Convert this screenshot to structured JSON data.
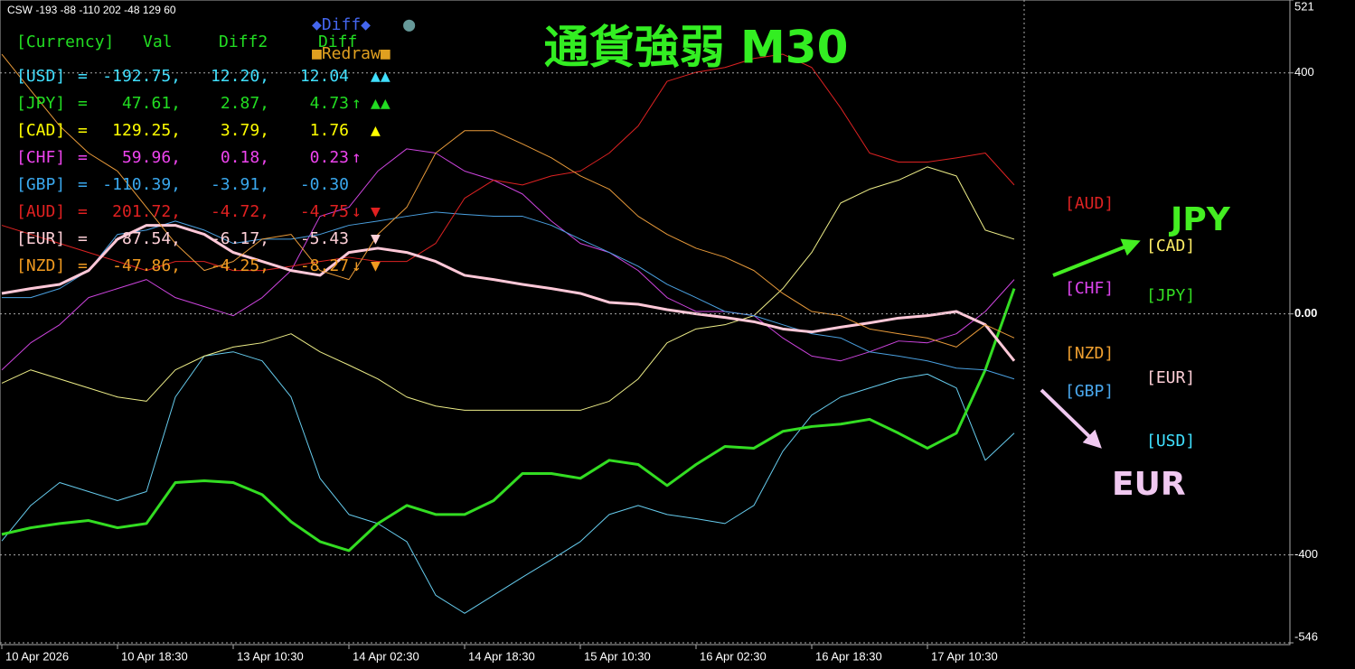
{
  "chart_data": {
    "type": "line",
    "title": "通貨強弱 M30",
    "subtitle": "CSW -193 -88 -110 202 -48 129 60",
    "categories": [
      "10 Apr 2026",
      null,
      null,
      null,
      "10 Apr 18:30",
      null,
      null,
      null,
      "13 Apr 10:30",
      null,
      null,
      null,
      "14 Apr 02:30",
      null,
      null,
      null,
      "14 Apr 18:30",
      null,
      null,
      null,
      "15 Apr 10:30",
      null,
      null,
      null,
      "16 Apr 02:30",
      null,
      null,
      null,
      "16 Apr 18:30",
      null,
      null,
      null,
      "17 Apr 10:30",
      null,
      null,
      null
    ],
    "ylim": [
      -546,
      521
    ],
    "yticks": [
      521,
      400,
      {
        "value": 0,
        "label": "0.00"
      },
      -400,
      -546
    ],
    "grid": true,
    "series": [
      {
        "name": "USD",
        "color": "#66ccee",
        "line_width": 1,
        "values": [
          -377,
          -318,
          -280,
          -295,
          -310,
          -295,
          -138,
          -70,
          -63,
          -78,
          -138,
          -273,
          -333,
          -348,
          -378,
          -467,
          -497,
          -467,
          -437,
          -408,
          -378,
          -333,
          -318,
          -333,
          -340,
          -348,
          -318,
          -228,
          -168,
          -138,
          -123,
          -108,
          -100,
          -123,
          -243,
          -198
        ]
      },
      {
        "name": "JPY",
        "color": "#33dd22",
        "line_width": 3,
        "values": [
          -366,
          -355,
          -348,
          -343,
          -355,
          -348,
          -280,
          -277,
          -280,
          -300,
          -345,
          -378,
          -393,
          -348,
          -318,
          -333,
          -333,
          -310,
          -265,
          -265,
          -273,
          -243,
          -250,
          -285,
          -250,
          -220,
          -223,
          -195,
          -187,
          -183,
          -175,
          -198,
          -223,
          -198,
          -93,
          42
        ]
      },
      {
        "name": "CAD",
        "color": "#eeee88",
        "line_width": 1,
        "values": [
          -115,
          -93,
          -108,
          -123,
          -138,
          -145,
          -93,
          -70,
          -55,
          -48,
          -33,
          -63,
          -85,
          -108,
          -138,
          -153,
          -160,
          -160,
          -160,
          -160,
          -160,
          -145,
          -108,
          -48,
          -25,
          -18,
          -3,
          42,
          102,
          184,
          207,
          222,
          244,
          229,
          139,
          124
        ]
      },
      {
        "name": "CHF",
        "color": "#cc44dd",
        "line_width": 1,
        "values": [
          -93,
          -48,
          -18,
          27,
          42,
          57,
          27,
          12,
          -3,
          27,
          72,
          162,
          177,
          237,
          274,
          267,
          237,
          222,
          199,
          154,
          117,
          102,
          72,
          27,
          4,
          4,
          -3,
          -40,
          -70,
          -78,
          -63,
          -45,
          -48,
          -33,
          4,
          57
        ]
      },
      {
        "name": "GBP",
        "color": "#4aa0e0",
        "line_width": 1,
        "values": [
          27,
          27,
          42,
          72,
          132,
          139,
          154,
          139,
          117,
          124,
          124,
          132,
          147,
          154,
          162,
          169,
          165,
          162,
          162,
          147,
          124,
          102,
          79,
          49,
          27,
          4,
          -3,
          -18,
          -33,
          -40,
          -63,
          -70,
          -78,
          -90,
          -93,
          -108
        ]
      },
      {
        "name": "AUD",
        "color": "#dd2222",
        "line_width": 1,
        "values": [
          147,
          132,
          117,
          102,
          87,
          72,
          87,
          87,
          72,
          72,
          79,
          87,
          94,
          87,
          87,
          117,
          192,
          222,
          214,
          229,
          237,
          267,
          312,
          386,
          401,
          409,
          424,
          431,
          409,
          342,
          267,
          252,
          252,
          259,
          267,
          214
        ]
      },
      {
        "name": "EUR",
        "color": "#ffc8d8",
        "line_width": 3,
        "values": [
          34,
          42,
          49,
          72,
          124,
          147,
          147,
          132,
          102,
          87,
          72,
          64,
          102,
          109,
          102,
          87,
          64,
          57,
          49,
          42,
          34,
          19,
          16,
          7,
          0,
          -6,
          -13,
          -25,
          -30,
          -22,
          -15,
          -7,
          -3,
          4,
          -18,
          -78
        ]
      },
      {
        "name": "NZD",
        "color": "#e89a3a",
        "line_width": 1,
        "values": [
          431,
          371,
          312,
          267,
          237,
          177,
          117,
          72,
          87,
          124,
          132,
          72,
          57,
          132,
          177,
          267,
          304,
          304,
          282,
          259,
          229,
          207,
          162,
          132,
          109,
          94,
          72,
          34,
          4,
          -3,
          -25,
          -33,
          -40,
          -55,
          -18,
          -40
        ]
      }
    ],
    "annotations": [
      {
        "text": "JPY",
        "color": "#44ee22"
      },
      {
        "text": "EUR",
        "color": "#f0c8f0"
      }
    ],
    "right_labels": [
      {
        "text": "[AUD]",
        "color": "#dd2222"
      },
      {
        "text": "[CAD]",
        "color": "#ffee66"
      },
      {
        "text": "[CHF]",
        "color": "#dd44ee"
      },
      {
        "text": "[JPY]",
        "color": "#33dd22"
      },
      {
        "text": "[NZD]",
        "color": "#f0a030"
      },
      {
        "text": "[EUR]",
        "color": "#ffd0d8"
      },
      {
        "text": "[GBP]",
        "color": "#4aa8ee"
      },
      {
        "text": "[USD]",
        "color": "#40e0ff"
      }
    ]
  },
  "panel": {
    "header": [
      "[Currency]",
      "Val",
      "Diff2",
      "Diff"
    ],
    "diff_button": "◆Diff◆",
    "dot": "●",
    "redraw_button": "■Redraw■",
    "rows": [
      {
        "cells": [
          "[USD]",
          "=",
          "-192.75,",
          "12.20,",
          "12.04"
        ],
        "flag": "▲▲",
        "color": "#40e0ff"
      },
      {
        "cells": [
          "[JPY]",
          "=",
          "47.61,",
          "2.87,",
          "4.73"
        ],
        "mark": "↑",
        "flag": "▲▲",
        "color": "#22dd22"
      },
      {
        "cells": [
          "[CAD]",
          "=",
          "129.25,",
          "3.79,",
          "1.76"
        ],
        "flag": "▲",
        "color": "#ffff00"
      },
      {
        "cells": [
          "[CHF]",
          "=",
          "59.96,",
          "0.18,",
          "0.23"
        ],
        "mark": "↑",
        "color": "#ee44ee"
      },
      {
        "cells": [
          "[GBP]",
          "=",
          "-110.39,",
          "-3.91,",
          "-0.30"
        ],
        "color": "#3aa8ee"
      },
      {
        "cells": [
          "[AUD]",
          "=",
          "201.72,",
          "-4.72,",
          "-4.75"
        ],
        "mark": "↓",
        "flag": "▼",
        "color": "#e02020"
      },
      {
        "cells": [
          "[EUR]",
          "=",
          "-87.54,",
          "-6.17,",
          "-5.43"
        ],
        "flag": "▼",
        "color": "#ffd0d8"
      },
      {
        "cells": [
          "[NZD]",
          "=",
          "-47.86,",
          "-4.25,",
          "-8.27"
        ],
        "mark": "↓",
        "flag": "▼",
        "color": "#f09a20"
      }
    ]
  }
}
